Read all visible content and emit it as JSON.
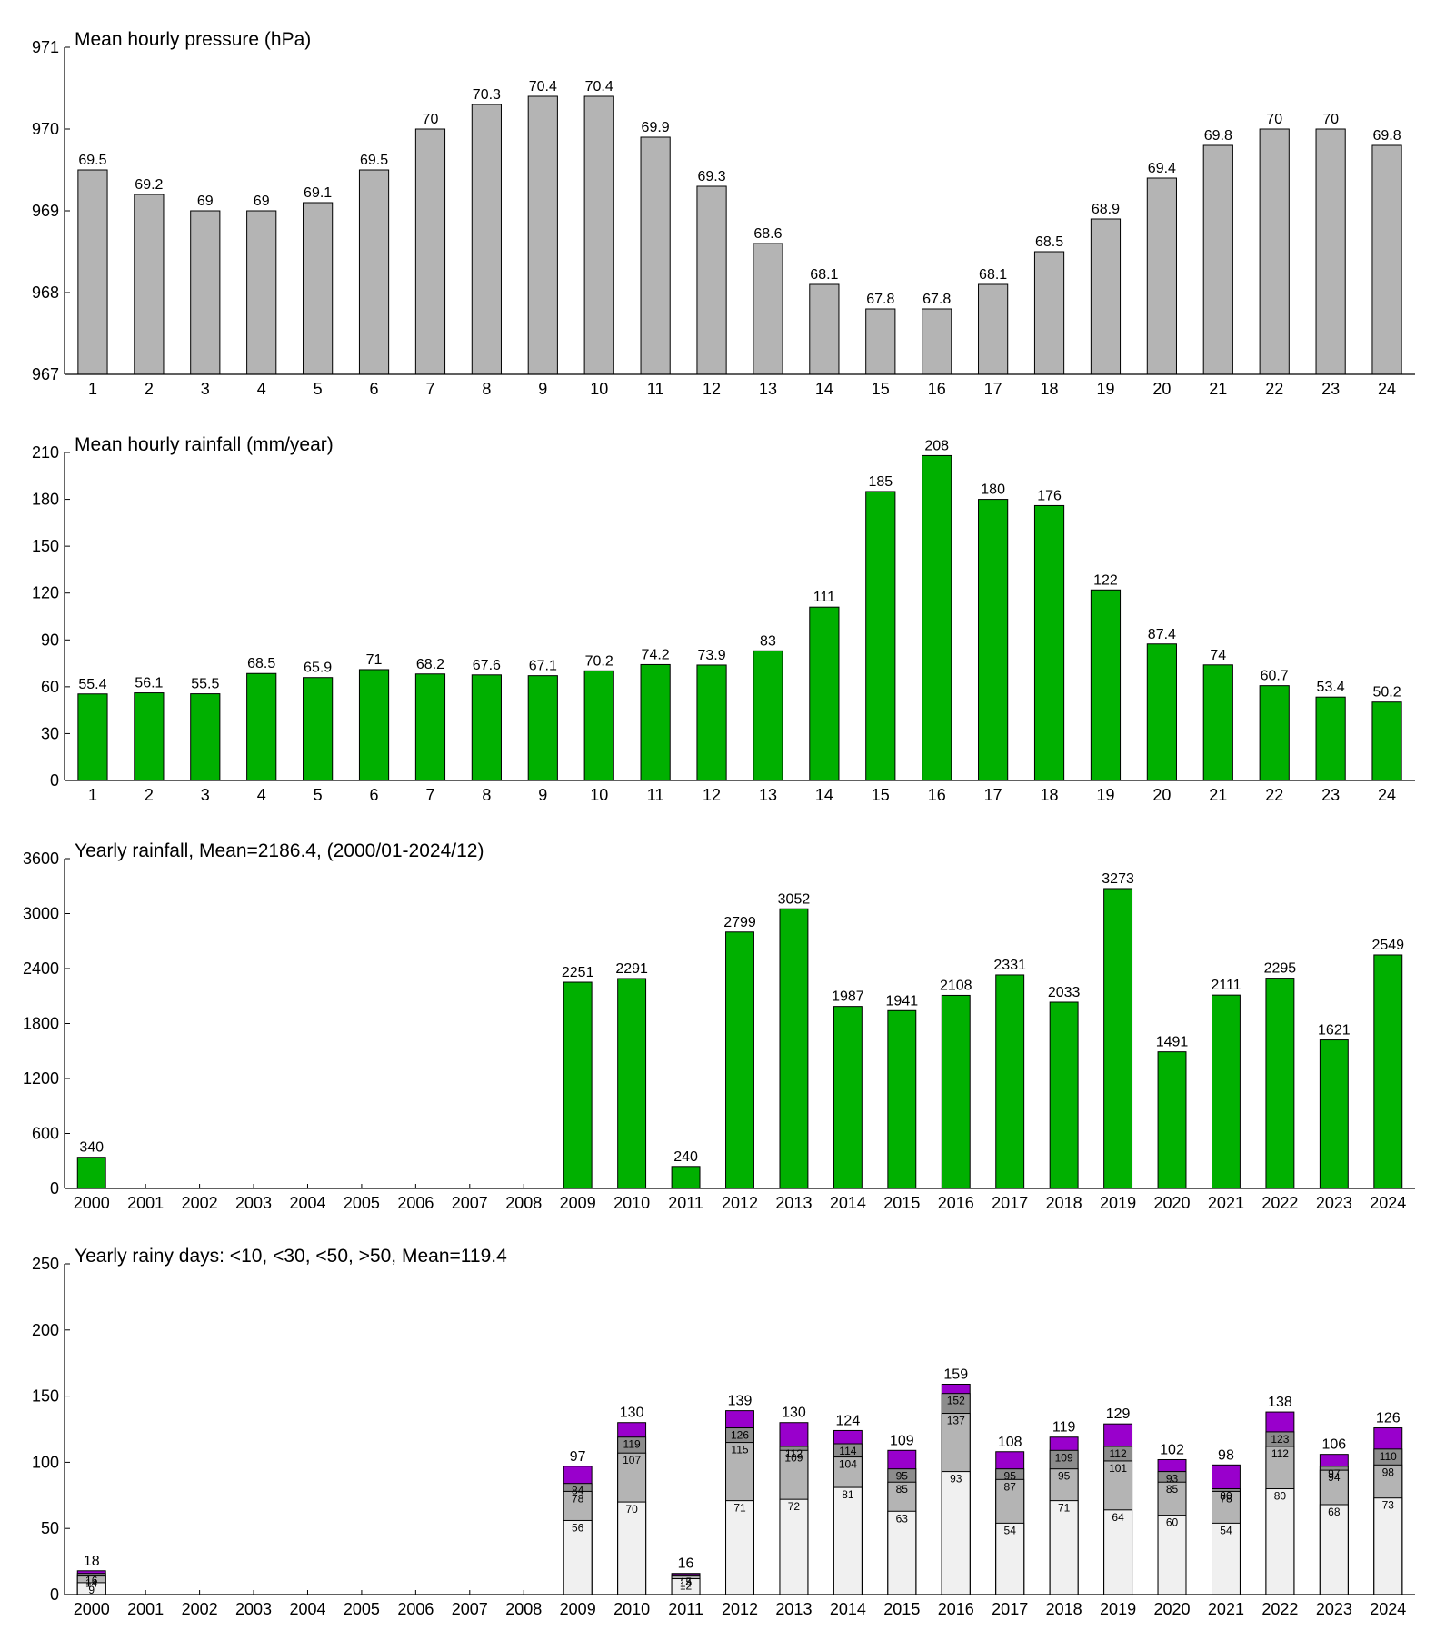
{
  "chart_data": [
    {
      "type": "bar",
      "title": "Mean hourly pressure (hPa)",
      "color": "#b4b4b4",
      "categories": [
        "1",
        "2",
        "3",
        "4",
        "5",
        "6",
        "7",
        "8",
        "9",
        "10",
        "11",
        "12",
        "13",
        "14",
        "15",
        "16",
        "17",
        "18",
        "19",
        "20",
        "21",
        "22",
        "23",
        "24"
      ],
      "values": [
        969.5,
        969.2,
        969,
        969,
        969.1,
        969.5,
        970,
        970.3,
        970.4,
        970.4,
        969.9,
        969.3,
        968.6,
        968.1,
        967.8,
        967.8,
        968.1,
        968.5,
        968.9,
        969.4,
        969.8,
        970,
        970,
        969.8
      ],
      "value_labels": [
        "69.5",
        "69.2",
        "69",
        "69",
        "69.1",
        "69.5",
        "70",
        "70.3",
        "70.4",
        "70.4",
        "69.9",
        "69.3",
        "68.6",
        "68.1",
        "67.8",
        "67.8",
        "68.1",
        "68.5",
        "68.9",
        "69.4",
        "69.8",
        "70",
        "70",
        "69.8"
      ],
      "ylim": [
        967,
        971
      ],
      "yticks": [
        967,
        968,
        969,
        970,
        971
      ]
    },
    {
      "type": "bar",
      "title": "Mean hourly rainfall (mm/year)",
      "color": "#00b000",
      "categories": [
        "1",
        "2",
        "3",
        "4",
        "5",
        "6",
        "7",
        "8",
        "9",
        "10",
        "11",
        "12",
        "13",
        "14",
        "15",
        "16",
        "17",
        "18",
        "19",
        "20",
        "21",
        "22",
        "23",
        "24"
      ],
      "values": [
        55.4,
        56.1,
        55.5,
        68.5,
        65.9,
        71,
        68.2,
        67.6,
        67.1,
        70.2,
        74.2,
        73.9,
        83,
        111,
        185,
        208,
        180,
        176,
        122,
        87.4,
        74,
        60.7,
        53.4,
        50.2
      ],
      "ylim": [
        0,
        210
      ],
      "yticks": [
        0,
        30,
        60,
        90,
        120,
        150,
        180,
        210
      ]
    },
    {
      "type": "bar",
      "title": "Yearly rainfall, Mean=2186.4, (2000/01-2024/12)",
      "color": "#00b000",
      "categories": [
        "2000",
        "2001",
        "2002",
        "2003",
        "2004",
        "2005",
        "2006",
        "2007",
        "2008",
        "2009",
        "2010",
        "2011",
        "2012",
        "2013",
        "2014",
        "2015",
        "2016",
        "2017",
        "2018",
        "2019",
        "2020",
        "2021",
        "2022",
        "2023",
        "2024"
      ],
      "values": [
        340,
        null,
        null,
        null,
        null,
        null,
        null,
        null,
        null,
        2251,
        2291,
        240,
        2799,
        3052,
        1987,
        1941,
        2108,
        2331,
        2033,
        3273,
        1491,
        2111,
        2295,
        1621,
        2549
      ],
      "ylim": [
        0,
        3600
      ],
      "yticks": [
        0,
        600,
        1200,
        1800,
        2400,
        3000,
        3600
      ]
    },
    {
      "type": "bar",
      "title": "Yearly rainy days: <10, <30, <50, >50, Mean=119.4",
      "categories": [
        "2000",
        "2001",
        "2002",
        "2003",
        "2004",
        "2005",
        "2006",
        "2007",
        "2008",
        "2009",
        "2010",
        "2011",
        "2012",
        "2013",
        "2014",
        "2015",
        "2016",
        "2017",
        "2018",
        "2019",
        "2020",
        "2021",
        "2022",
        "2023",
        "2024"
      ],
      "series": [
        {
          "color": "#f0f0f0",
          "values": [
            9,
            null,
            null,
            null,
            null,
            null,
            null,
            null,
            null,
            56,
            70,
            12,
            71,
            72,
            81,
            63,
            93,
            54,
            71,
            64,
            60,
            54,
            80,
            68,
            73
          ]
        },
        {
          "color": "#b4b4b4",
          "values": [
            14,
            null,
            null,
            null,
            null,
            null,
            null,
            null,
            null,
            78,
            107,
            14,
            115,
            109,
            104,
            85,
            137,
            87,
            95,
            101,
            85,
            78,
            112,
            94,
            98
          ]
        },
        {
          "color": "#8c8c8c",
          "values": [
            16,
            null,
            null,
            null,
            null,
            null,
            null,
            null,
            null,
            84,
            119,
            15,
            126,
            112,
            114,
            95,
            152,
            95,
            109,
            112,
            93,
            80,
            123,
            97,
            110
          ]
        },
        {
          "color": "#9900cc",
          "values": [
            18,
            null,
            null,
            null,
            null,
            null,
            null,
            null,
            null,
            97,
            130,
            16,
            139,
            130,
            124,
            109,
            159,
            108,
            119,
            129,
            102,
            98,
            138,
            106,
            126
          ]
        }
      ],
      "ylim": [
        0,
        250
      ],
      "yticks": [
        0,
        50,
        100,
        150,
        200,
        250
      ]
    }
  ]
}
